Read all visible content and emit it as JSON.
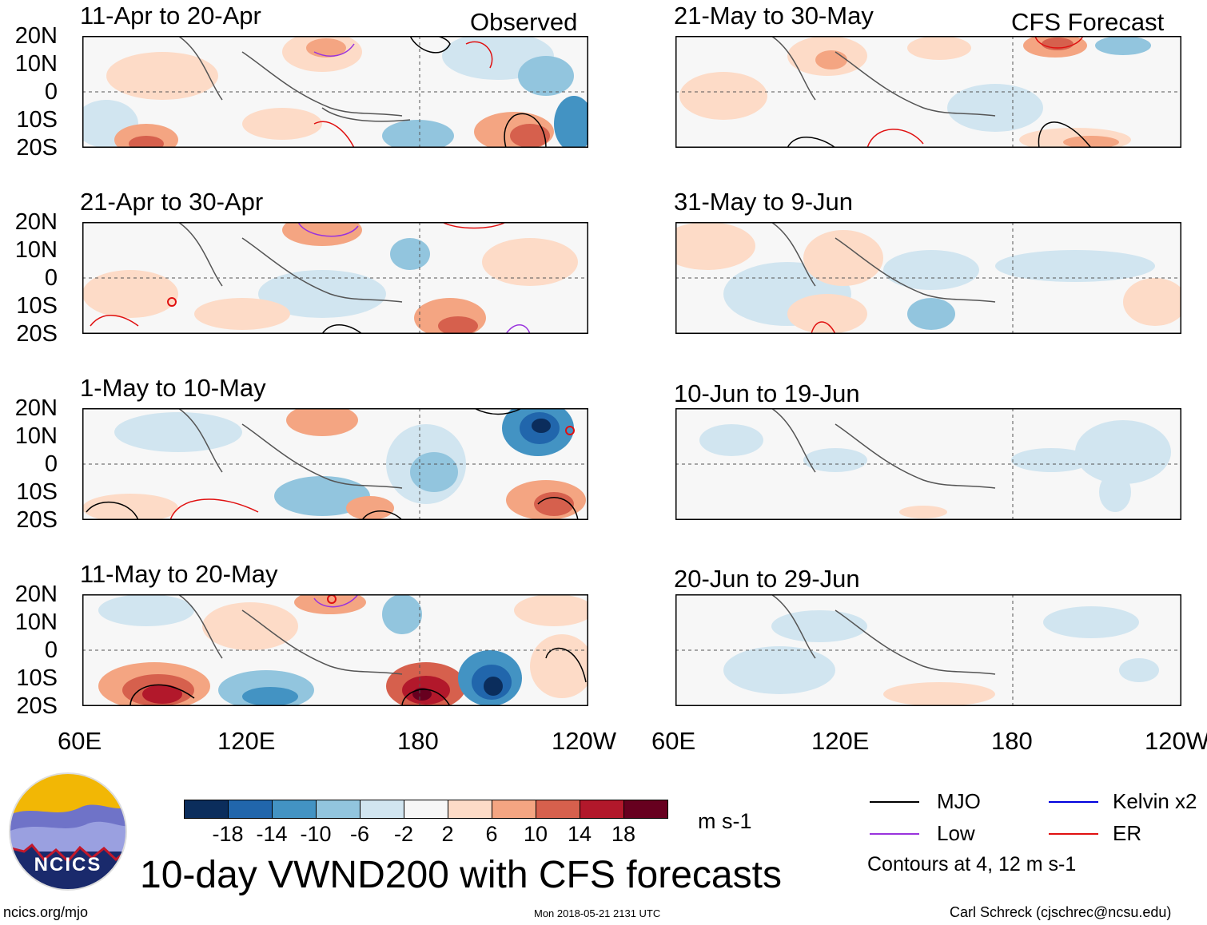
{
  "figure": {
    "title": "10-day VWND200 with CFS forecasts",
    "units": "m s-1",
    "contour_note": "Contours at 4, 12 m s-1",
    "website": "ncics.org/mjo",
    "timestamp": "Mon 2018-05-21 2131 UTC",
    "author": "Carl Schreck (cjschrec@ncsu.edu)",
    "logo_text": "NCICS"
  },
  "columns": {
    "left_label": "Observed",
    "right_label": "CFS Forecast"
  },
  "panels_left": [
    {
      "title": "11-Apr to 20-Apr"
    },
    {
      "title": "21-Apr to 30-Apr"
    },
    {
      "title": "1-May to 10-May"
    },
    {
      "title": "11-May to 20-May"
    }
  ],
  "panels_right": [
    {
      "title": "21-May to 30-May"
    },
    {
      "title": "31-May to 9-Jun"
    },
    {
      "title": "10-Jun to 19-Jun"
    },
    {
      "title": "20-Jun to 29-Jun"
    }
  ],
  "axes": {
    "lat_labels": [
      "20N",
      "10N",
      "0",
      "10S",
      "20S"
    ],
    "lon_labels": [
      "60E",
      "120E",
      "180",
      "120W"
    ]
  },
  "colorbar": {
    "colors": [
      "#0b2d5c",
      "#2166ac",
      "#4393c3",
      "#92c5de",
      "#d1e5f0",
      "#f7f7f7",
      "#fddbc7",
      "#f4a582",
      "#d6604d",
      "#b2182b",
      "#67001f"
    ],
    "labels": [
      "-18",
      "-14",
      "-10",
      "-6",
      "-2",
      "2",
      "6",
      "10",
      "14",
      "18"
    ]
  },
  "legend": [
    {
      "name": "MJO",
      "color": "#000000"
    },
    {
      "name": "Kelvin x2",
      "color": "#0000dd"
    },
    {
      "name": "Low",
      "color": "#9933dd"
    },
    {
      "name": "ER",
      "color": "#e01010"
    }
  ]
}
